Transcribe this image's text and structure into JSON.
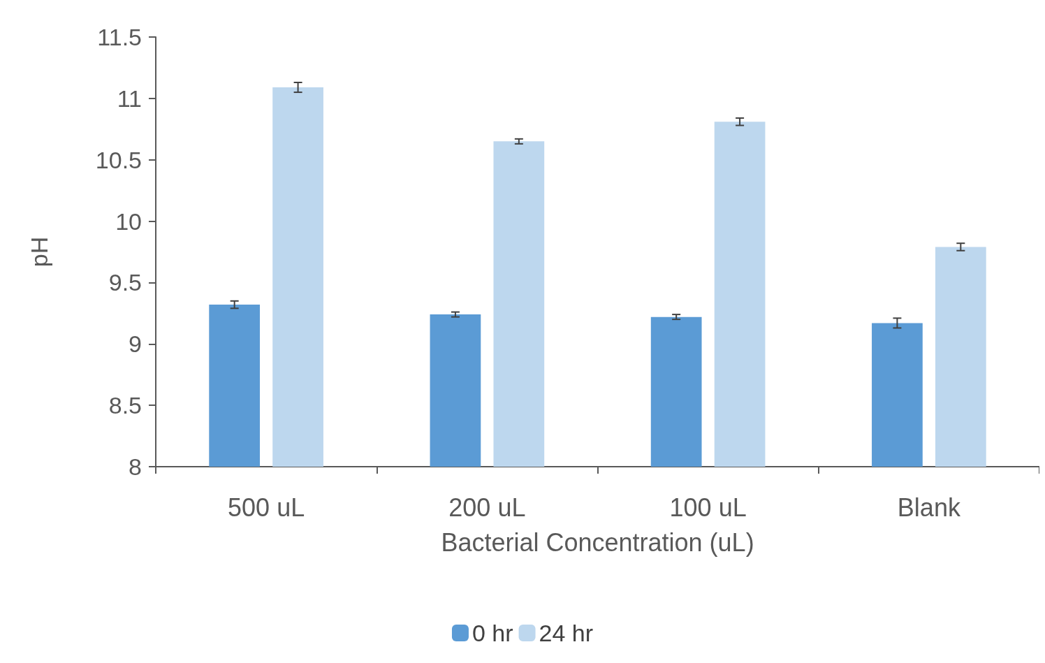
{
  "chart_data": {
    "type": "bar",
    "xlabel": "Bacterial Concentration (uL)",
    "ylabel": "pH",
    "categories": [
      "500 uL",
      "200 uL",
      "100 uL",
      "Blank"
    ],
    "series": [
      {
        "name": "0 hr",
        "color": "#5b9bd5",
        "values": [
          9.32,
          9.24,
          9.22,
          9.17
        ],
        "errors": [
          0.03,
          0.02,
          0.02,
          0.04
        ]
      },
      {
        "name": "24 hr",
        "color": "#bdd7ee",
        "values": [
          11.09,
          10.65,
          10.81,
          9.79
        ],
        "errors": [
          0.04,
          0.02,
          0.03,
          0.03
        ]
      }
    ],
    "ylim": [
      8,
      11.5
    ],
    "yticks": [
      8,
      8.5,
      9,
      9.5,
      10,
      10.5,
      11,
      11.5
    ],
    "grid": false,
    "legend": "bottom"
  }
}
